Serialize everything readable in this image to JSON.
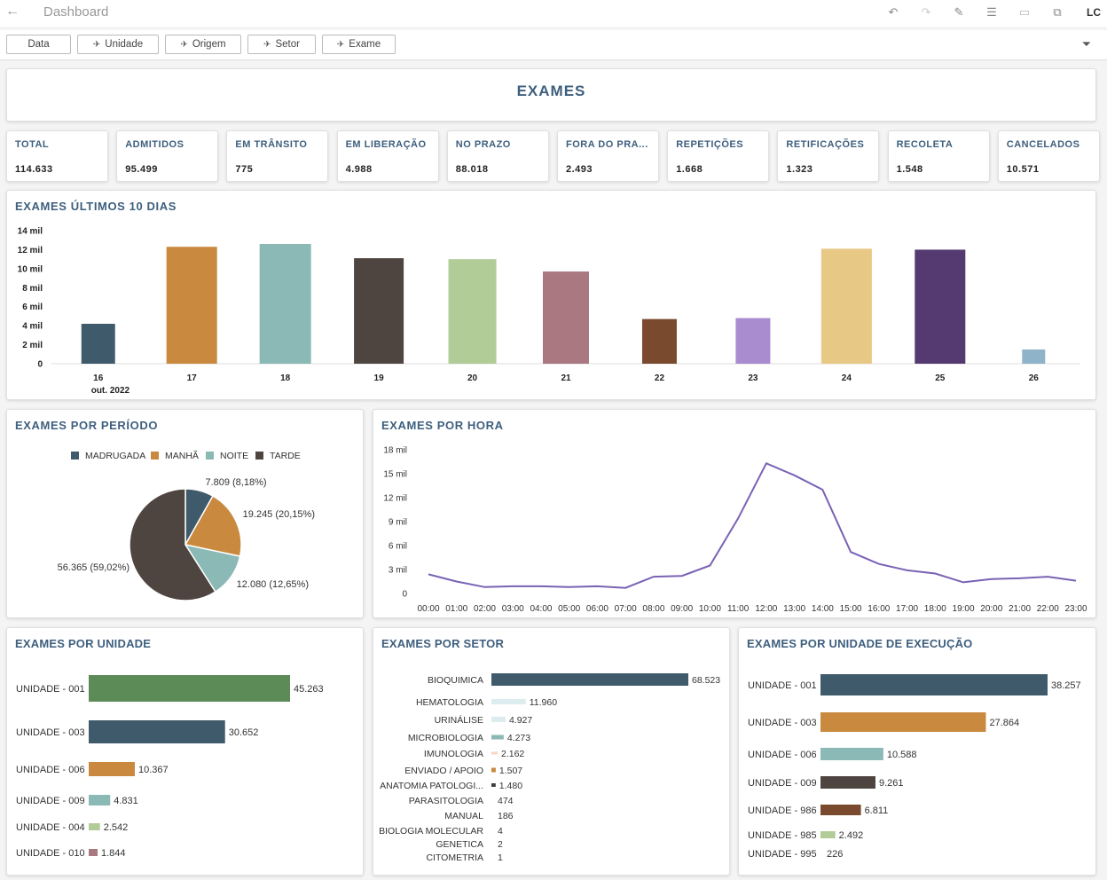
{
  "header": {
    "title": "Dashboard",
    "user": "LC"
  },
  "filters": [
    "Data",
    "Unidade",
    "Origem",
    "Setor",
    "Exame"
  ],
  "main_title": "EXAMES",
  "kpis": [
    {
      "label": "TOTAL",
      "value": "114.633"
    },
    {
      "label": "ADMITIDOS",
      "value": "95.499"
    },
    {
      "label": "EM TRÂNSITO",
      "value": "775"
    },
    {
      "label": "EM LIBERAÇÃO",
      "value": "4.988"
    },
    {
      "label": "NO PRAZO",
      "value": "88.018"
    },
    {
      "label": "FORA DO PRA...",
      "value": "2.493"
    },
    {
      "label": "REPETIÇÕES",
      "value": "1.668"
    },
    {
      "label": "RETIFICAÇÕES",
      "value": "1.323"
    },
    {
      "label": "RECOLETA",
      "value": "1.548"
    },
    {
      "label": "CANCELADOS",
      "value": "10.571"
    }
  ],
  "panels": {
    "last10": "EXAMES ÚLTIMOS 10 DIAS",
    "periodo": "EXAMES POR PERÍODO",
    "hora": "EXAMES POR HORA",
    "unidade": "EXAMES POR UNIDADE",
    "setor": "EXAMES POR SETOR",
    "execucao": "EXAMES POR UNIDADE DE EXECUÇÃO"
  },
  "chart_data": [
    {
      "type": "bar",
      "title": "EXAMES ÚLTIMOS 10 DIAS",
      "categories": [
        "16",
        "17",
        "18",
        "19",
        "20",
        "21",
        "22",
        "23",
        "24",
        "25",
        "26"
      ],
      "x_sublabel": "out. 2022",
      "values": [
        4200,
        12300,
        12600,
        11100,
        11000,
        9700,
        4700,
        4800,
        12100,
        12000,
        1500
      ],
      "colors": [
        "#3f5a6a",
        "#c9893f",
        "#8ab9b6",
        "#4f4540",
        "#b2cc98",
        "#a97880",
        "#7a4a2e",
        "#a98bcf",
        "#e8c885",
        "#553a72",
        "#8fb3c9"
      ],
      "yticks": [
        "14 mil",
        "12 mil",
        "10 mil",
        "8 mil",
        "6 mil",
        "4 mil",
        "2 mil",
        "0"
      ],
      "ylim": [
        0,
        14000
      ]
    },
    {
      "type": "pie",
      "title": "EXAMES POR PERÍODO",
      "legend": [
        {
          "name": "MADRUGADA",
          "color": "#3f5a6a"
        },
        {
          "name": "MANHÃ",
          "color": "#c9893f"
        },
        {
          "name": "NOITE",
          "color": "#8ab9b6"
        },
        {
          "name": "TARDE",
          "color": "#4f4540"
        }
      ],
      "slices": [
        {
          "name": "MADRUGADA",
          "value": 7809,
          "label": "7.809 (8,18%)",
          "color": "#3f5a6a"
        },
        {
          "name": "MANHÃ",
          "value": 19245,
          "label": "19.245 (20,15%)",
          "color": "#c9893f"
        },
        {
          "name": "NOITE",
          "value": 12080,
          "label": "12.080 (12,65%)",
          "color": "#8ab9b6"
        },
        {
          "name": "TARDE",
          "value": 56365,
          "label": "56.365 (59,02%)",
          "color": "#4f4540"
        }
      ]
    },
    {
      "type": "line",
      "title": "EXAMES POR HORA",
      "x": [
        "00:00",
        "01:00",
        "02:00",
        "03:00",
        "04:00",
        "05:00",
        "06:00",
        "07:00",
        "08:00",
        "09:00",
        "10:00",
        "11:00",
        "12:00",
        "13:00",
        "14:00",
        "15:00",
        "16:00",
        "17:00",
        "18:00",
        "19:00",
        "20:00",
        "21:00",
        "22:00",
        "23:00"
      ],
      "values": [
        2400,
        1500,
        800,
        900,
        900,
        800,
        900,
        700,
        2100,
        2200,
        3500,
        9400,
        16300,
        14800,
        13000,
        5200,
        3700,
        2900,
        2500,
        1400,
        1800,
        1900,
        2100,
        1600
      ],
      "yticks": [
        "18 mil",
        "15 mil",
        "12 mil",
        "9 mil",
        "6 mil",
        "3 mil",
        "0"
      ],
      "ylim": [
        0,
        18000
      ],
      "color": "#7a62b5"
    },
    {
      "type": "bar",
      "orientation": "horizontal",
      "title": "EXAMES POR UNIDADE",
      "categories": [
        "UNIDADE - 001",
        "UNIDADE - 003",
        "UNIDADE - 006",
        "UNIDADE - 009",
        "UNIDADE - 004",
        "UNIDADE - 010"
      ],
      "values": [
        45263,
        30652,
        10367,
        4831,
        2542,
        1844
      ],
      "labels": [
        "45.263",
        "30.652",
        "10.367",
        "4.831",
        "2.542",
        "1.844"
      ],
      "colors": [
        "#5c8b57",
        "#3f5a6a",
        "#c9893f",
        "#8ab9b6",
        "#b2cc98",
        "#a97880"
      ]
    },
    {
      "type": "bar",
      "orientation": "horizontal",
      "title": "EXAMES POR SETOR",
      "categories": [
        "BIOQUIMICA",
        "HEMATOLOGIA",
        "URINÁLISE",
        "MICROBIOLOGIA",
        "IMUNOLOGIA",
        "ENVIADO / APOIO",
        "ANATOMIA PATOLOGI...",
        "PARASITOLOGIA",
        "MANUAL",
        "BIOLOGIA MOLECULAR",
        "GENETICA",
        "CITOMETRIA"
      ],
      "values": [
        68523,
        11960,
        4927,
        4273,
        2162,
        1507,
        1480,
        474,
        186,
        4,
        2,
        1
      ],
      "labels": [
        "68.523",
        "11.960",
        "4.927",
        "4.273",
        "2.162",
        "1.507",
        "1.480",
        "474",
        "186",
        "4",
        "2",
        "1"
      ],
      "colors": [
        "#3f5a6a",
        "#dcecef",
        "#dcecee",
        "#8ab9b6",
        "#f4d7c4",
        "#c9893f",
        "#3d3d3d",
        "#cccccc",
        "#cccccc",
        "#cccccc",
        "#cccccc",
        "#cccccc"
      ]
    },
    {
      "type": "bar",
      "orientation": "horizontal",
      "title": "EXAMES POR UNIDADE DE EXECUÇÃO",
      "categories": [
        "UNIDADE - 001",
        "UNIDADE - 003",
        "UNIDADE - 006",
        "UNIDADE - 009",
        "UNIDADE - 986",
        "UNIDADE - 985",
        "UNIDADE - 995"
      ],
      "values": [
        38257,
        27864,
        10588,
        9261,
        6811,
        2492,
        226
      ],
      "labels": [
        "38.257",
        "27.864",
        "10.588",
        "9.261",
        "6.811",
        "2.492",
        "226"
      ],
      "colors": [
        "#3f5a6a",
        "#c9893f",
        "#8ab9b6",
        "#4f4540",
        "#7a4a2e",
        "#b2cc98",
        "#a98bcf"
      ]
    }
  ]
}
